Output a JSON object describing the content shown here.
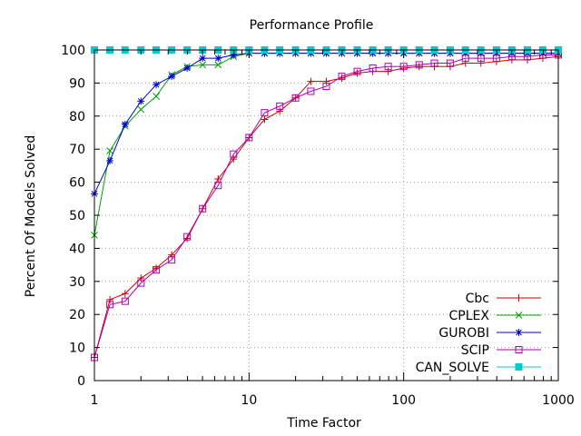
{
  "chart_data": {
    "type": "line",
    "title": "Performance Profile",
    "xlabel": "Time Factor",
    "ylabel": "Percent Of Models Solved",
    "x_scale": "log",
    "xlim": [
      1,
      1000
    ],
    "ylim": [
      0,
      100
    ],
    "x_ticks": [
      1,
      10,
      100,
      1000
    ],
    "x_tick_labels": [
      "1",
      "10",
      "100",
      "1000"
    ],
    "y_ticks": [
      0,
      10,
      20,
      30,
      40,
      50,
      60,
      70,
      80,
      90,
      100
    ],
    "y_tick_labels": [
      "0",
      "10",
      "20",
      "30",
      "40",
      "50",
      "60",
      "70",
      "80",
      "90",
      "100"
    ],
    "grid": true,
    "legend_position": "bottom-right",
    "series": [
      {
        "name": "Cbc",
        "color": "#cc0000",
        "marker": "plus",
        "points": [
          [
            1,
            7
          ],
          [
            1.26,
            24.5
          ],
          [
            1.58,
            26.3
          ],
          [
            2,
            31
          ],
          [
            2.51,
            34
          ],
          [
            3.16,
            38
          ],
          [
            3.98,
            43
          ],
          [
            5.01,
            52
          ],
          [
            6.31,
            61
          ],
          [
            7.94,
            67
          ],
          [
            10,
            73.5
          ],
          [
            12.6,
            79
          ],
          [
            15.8,
            81.5
          ],
          [
            20,
            85.5
          ],
          [
            25.1,
            90.5
          ],
          [
            31.6,
            90.5
          ],
          [
            39.8,
            91.5
          ],
          [
            50.1,
            93
          ],
          [
            63.1,
            93.5
          ],
          [
            79.4,
            93.5
          ],
          [
            100,
            94.5
          ],
          [
            126,
            95
          ],
          [
            158,
            95
          ],
          [
            200,
            95
          ],
          [
            251,
            96
          ],
          [
            316,
            96
          ],
          [
            398,
            96.5
          ],
          [
            501,
            97
          ],
          [
            631,
            97
          ],
          [
            794,
            97.5
          ],
          [
            1000,
            98
          ]
        ]
      },
      {
        "name": "CPLEX",
        "color": "#00a000",
        "marker": "cross",
        "points": [
          [
            1,
            44
          ],
          [
            1.26,
            69.5
          ],
          [
            1.58,
            77
          ],
          [
            2,
            82
          ],
          [
            2.51,
            86
          ],
          [
            3.16,
            92.5
          ],
          [
            3.98,
            95
          ],
          [
            5.01,
            95.5
          ],
          [
            6.31,
            95.5
          ],
          [
            7.94,
            98
          ],
          [
            10,
            99
          ],
          [
            12.6,
            99
          ],
          [
            15.8,
            99
          ],
          [
            20,
            99
          ],
          [
            25.1,
            99
          ],
          [
            31.6,
            99
          ],
          [
            39.8,
            99
          ],
          [
            50.1,
            99
          ],
          [
            63.1,
            99
          ],
          [
            79.4,
            99
          ],
          [
            100,
            99
          ],
          [
            126,
            99
          ],
          [
            158,
            99
          ],
          [
            200,
            99
          ],
          [
            251,
            99
          ],
          [
            316,
            99
          ],
          [
            398,
            99
          ],
          [
            501,
            99
          ],
          [
            631,
            99
          ],
          [
            794,
            99
          ],
          [
            1000,
            99
          ]
        ]
      },
      {
        "name": "GUROBI",
        "color": "#0000cc",
        "marker": "star",
        "points": [
          [
            1,
            56.5
          ],
          [
            1.26,
            66.5
          ],
          [
            1.58,
            77.5
          ],
          [
            2,
            84.5
          ],
          [
            2.51,
            89.5
          ],
          [
            3.16,
            92
          ],
          [
            3.98,
            94.5
          ],
          [
            5.01,
            97.5
          ],
          [
            6.31,
            97.5
          ],
          [
            7.94,
            98.5
          ],
          [
            10,
            99
          ],
          [
            12.6,
            99
          ],
          [
            15.8,
            99
          ],
          [
            20,
            99
          ],
          [
            25.1,
            99
          ],
          [
            31.6,
            99
          ],
          [
            39.8,
            99
          ],
          [
            50.1,
            99
          ],
          [
            63.1,
            99
          ],
          [
            79.4,
            99
          ],
          [
            100,
            99
          ],
          [
            126,
            99
          ],
          [
            158,
            99
          ],
          [
            200,
            99
          ],
          [
            251,
            99
          ],
          [
            316,
            99
          ],
          [
            398,
            99
          ],
          [
            501,
            99
          ],
          [
            631,
            99
          ],
          [
            794,
            99
          ],
          [
            1000,
            99
          ]
        ]
      },
      {
        "name": "SCIP",
        "color": "#b000b0",
        "marker": "square-open",
        "points": [
          [
            1,
            7
          ],
          [
            1.26,
            23
          ],
          [
            1.58,
            24
          ],
          [
            2,
            29.5
          ],
          [
            2.51,
            33.5
          ],
          [
            3.16,
            36.5
          ],
          [
            3.98,
            43.5
          ],
          [
            5.01,
            52
          ],
          [
            6.31,
            59
          ],
          [
            7.94,
            68.5
          ],
          [
            10,
            73.5
          ],
          [
            12.6,
            81
          ],
          [
            15.8,
            83
          ],
          [
            20,
            85.5
          ],
          [
            25.1,
            87.5
          ],
          [
            31.6,
            89
          ],
          [
            39.8,
            92
          ],
          [
            50.1,
            93.5
          ],
          [
            63.1,
            94.5
          ],
          [
            79.4,
            95
          ],
          [
            100,
            95
          ],
          [
            126,
            95.5
          ],
          [
            158,
            96
          ],
          [
            200,
            96
          ],
          [
            251,
            97.5
          ],
          [
            316,
            97.5
          ],
          [
            398,
            97.5
          ],
          [
            501,
            98
          ],
          [
            631,
            98
          ],
          [
            794,
            98.5
          ],
          [
            1000,
            98.5
          ]
        ]
      },
      {
        "name": "CAN_SOLVE",
        "color": "#00cccc",
        "marker": "square-filled",
        "points": [
          [
            1,
            100
          ],
          [
            1.26,
            100
          ],
          [
            1.58,
            100
          ],
          [
            2,
            100
          ],
          [
            2.51,
            100
          ],
          [
            3.16,
            100
          ],
          [
            3.98,
            100
          ],
          [
            5.01,
            100
          ],
          [
            6.31,
            100
          ],
          [
            7.94,
            100
          ],
          [
            10,
            100
          ],
          [
            12.6,
            100
          ],
          [
            15.8,
            100
          ],
          [
            20,
            100
          ],
          [
            25.1,
            100
          ],
          [
            31.6,
            100
          ],
          [
            39.8,
            100
          ],
          [
            50.1,
            100
          ],
          [
            63.1,
            100
          ],
          [
            79.4,
            100
          ],
          [
            100,
            100
          ],
          [
            126,
            100
          ],
          [
            158,
            100
          ],
          [
            200,
            100
          ],
          [
            251,
            100
          ],
          [
            316,
            100
          ],
          [
            398,
            100
          ],
          [
            501,
            100
          ],
          [
            631,
            100
          ],
          [
            794,
            100
          ],
          [
            1000,
            100
          ]
        ]
      }
    ]
  }
}
